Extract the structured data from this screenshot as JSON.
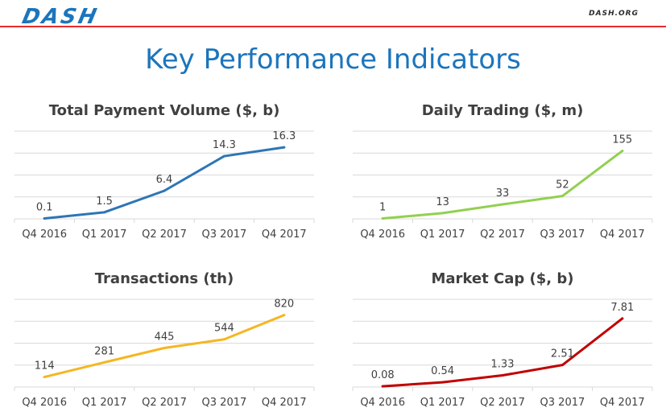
{
  "header": {
    "logo": "DASH",
    "site": "DASH.ORG",
    "brand_color": "#1c75bc",
    "rule_color": "#e42b2b"
  },
  "page_title": "Key Performance Indicators",
  "chart_data": [
    {
      "type": "line",
      "title": "Total Payment Volume ($, b)",
      "categories": [
        "Q4 2016",
        "Q1 2017",
        "Q2 2017",
        "Q3 2017",
        "Q4 2017"
      ],
      "values": [
        0.1,
        1.5,
        6.4,
        14.3,
        16.3
      ],
      "labels": [
        "0.1",
        "1.5",
        "6.4",
        "14.3",
        "16.3"
      ],
      "ylim": [
        0,
        20
      ],
      "grid": true,
      "color": "#2e75b6"
    },
    {
      "type": "line",
      "title": "Daily Trading ($, m)",
      "categories": [
        "Q4 2016",
        "Q1 2017",
        "Q2 2017",
        "Q3 2017",
        "Q4 2017"
      ],
      "values": [
        1,
        13,
        33,
        52,
        155
      ],
      "labels": [
        "1",
        "13",
        "33",
        "52",
        "155"
      ],
      "ylim": [
        0,
        200
      ],
      "grid": true,
      "color": "#92d050"
    },
    {
      "type": "line",
      "title": "Transactions (th)",
      "categories": [
        "Q4 2016",
        "Q1 2017",
        "Q2 2017",
        "Q3 2017",
        "Q4 2017"
      ],
      "values": [
        114,
        281,
        445,
        544,
        820
      ],
      "labels": [
        "114",
        "281",
        "445",
        "544",
        "820"
      ],
      "ylim": [
        0,
        1000
      ],
      "grid": true,
      "color": "#f5b622"
    },
    {
      "type": "line",
      "title": "Market Cap ($, b)",
      "categories": [
        "Q4 2016",
        "Q1 2017",
        "Q2 2017",
        "Q3 2017",
        "Q4 2017"
      ],
      "values": [
        0.08,
        0.54,
        1.33,
        2.51,
        7.81
      ],
      "labels": [
        "0.08",
        "0.54",
        "1.33",
        "2.51",
        "7.81"
      ],
      "ylim": [
        0,
        10
      ],
      "grid": true,
      "color": "#c00000"
    }
  ]
}
